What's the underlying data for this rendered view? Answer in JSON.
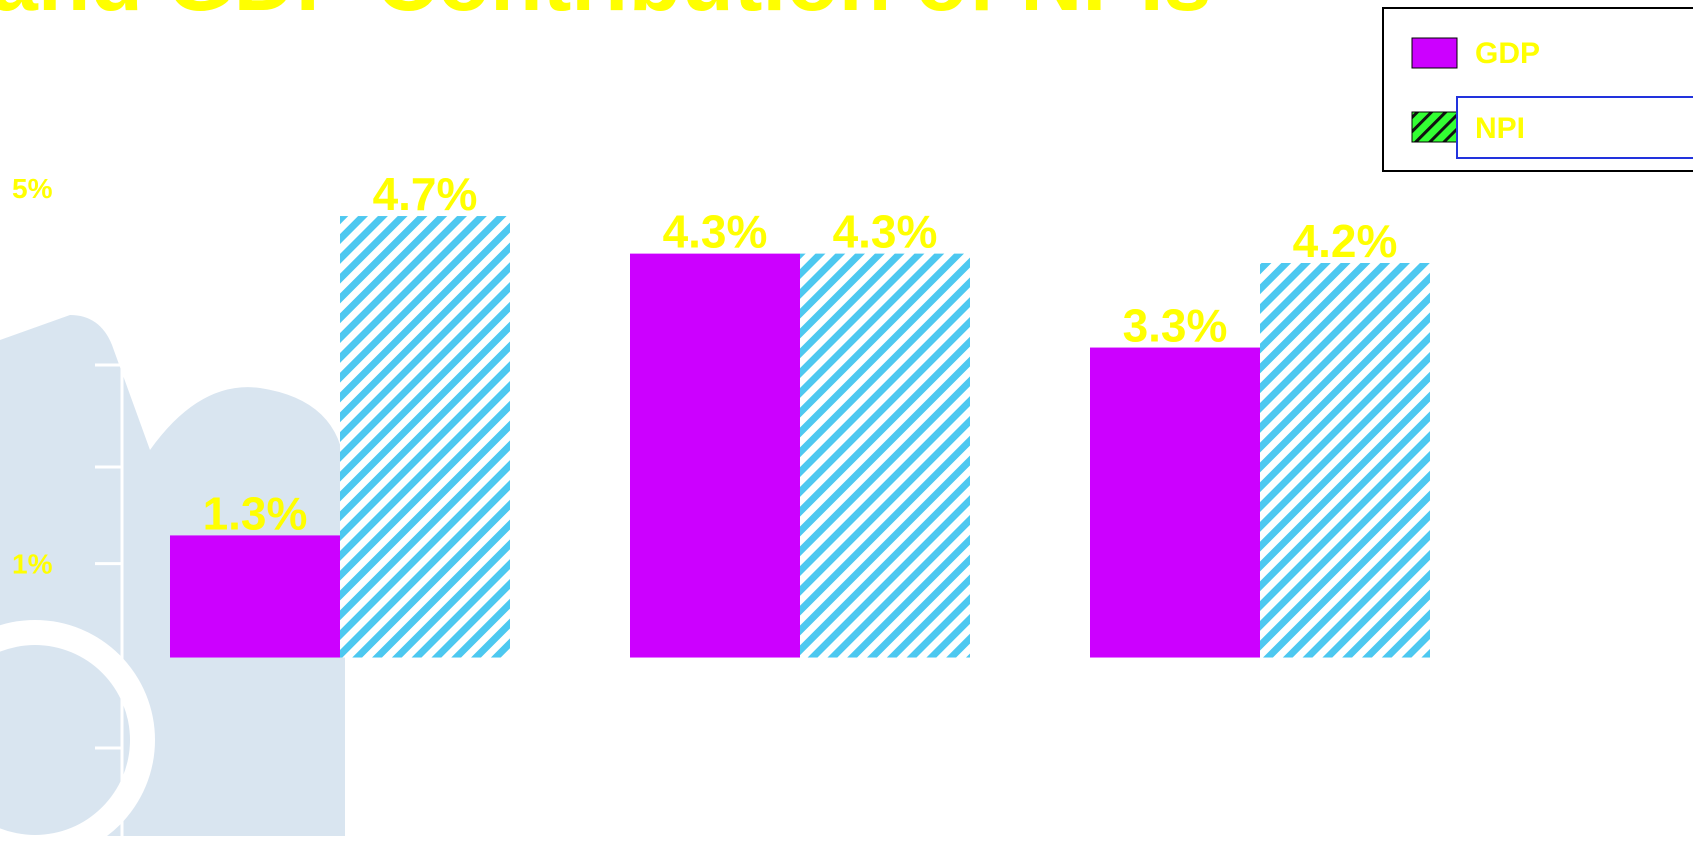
{
  "chart_data": {
    "type": "bar",
    "title": "and GDP Contribution of NPIs",
    "categories": [
      null,
      null,
      null
    ],
    "series": [
      {
        "name": "GDP",
        "color": "#cc00ff",
        "values": [
          1.3,
          4.3,
          3.3
        ],
        "value_labels": [
          "1.3%",
          "4.3%",
          "3.3%"
        ]
      },
      {
        "name": "NPI",
        "color": "#4dc8f0",
        "hatch": true,
        "values": [
          4.7,
          4.3,
          4.2
        ],
        "value_labels": [
          "4.7%",
          "4.3%",
          "4.2%"
        ]
      }
    ],
    "ylim": [
      -1.9,
      7
    ],
    "yticks": [
      {
        "value": 1,
        "label": "1%"
      },
      {
        "value": 5,
        "label": "5%"
      }
    ]
  }
}
